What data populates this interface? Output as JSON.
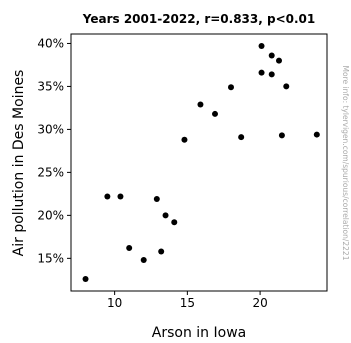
{
  "chart_data": {
    "type": "scatter",
    "title": "Years 2001-2022, r=0.833, p<0.01",
    "xlabel": "Arson in Iowa",
    "ylabel": "Air pollution in Des Moines",
    "xlim": [
      7.0,
      24.6
    ],
    "ylim": [
      0.112,
      0.411
    ],
    "xticks": [
      10,
      15,
      20
    ],
    "xtick_labels": [
      "10",
      "15",
      "20"
    ],
    "yticks": [
      0.15,
      0.2,
      0.25,
      0.3,
      0.35,
      0.4
    ],
    "ytick_labels": [
      "15%",
      "20%",
      "25%",
      "30%",
      "35%",
      "40%"
    ],
    "grid": false,
    "watermark": "More info: tylervigen.com/spurious/correlation/2221",
    "colors": {
      "points": "#000000",
      "frame": "#000000",
      "watermark": "#aaaaaa"
    },
    "points": [
      {
        "x": 8.0,
        "y": 0.126
      },
      {
        "x": 9.5,
        "y": 0.222
      },
      {
        "x": 10.4,
        "y": 0.222
      },
      {
        "x": 11.0,
        "y": 0.162
      },
      {
        "x": 12.0,
        "y": 0.148
      },
      {
        "x": 12.9,
        "y": 0.219
      },
      {
        "x": 13.2,
        "y": 0.158
      },
      {
        "x": 13.5,
        "y": 0.2
      },
      {
        "x": 14.1,
        "y": 0.192
      },
      {
        "x": 14.8,
        "y": 0.288
      },
      {
        "x": 15.9,
        "y": 0.329
      },
      {
        "x": 16.9,
        "y": 0.318
      },
      {
        "x": 18.0,
        "y": 0.349
      },
      {
        "x": 18.7,
        "y": 0.291
      },
      {
        "x": 20.1,
        "y": 0.397
      },
      {
        "x": 20.1,
        "y": 0.366
      },
      {
        "x": 20.8,
        "y": 0.386
      },
      {
        "x": 20.8,
        "y": 0.364
      },
      {
        "x": 21.3,
        "y": 0.38
      },
      {
        "x": 21.5,
        "y": 0.293
      },
      {
        "x": 21.8,
        "y": 0.35
      },
      {
        "x": 23.9,
        "y": 0.294
      }
    ]
  }
}
